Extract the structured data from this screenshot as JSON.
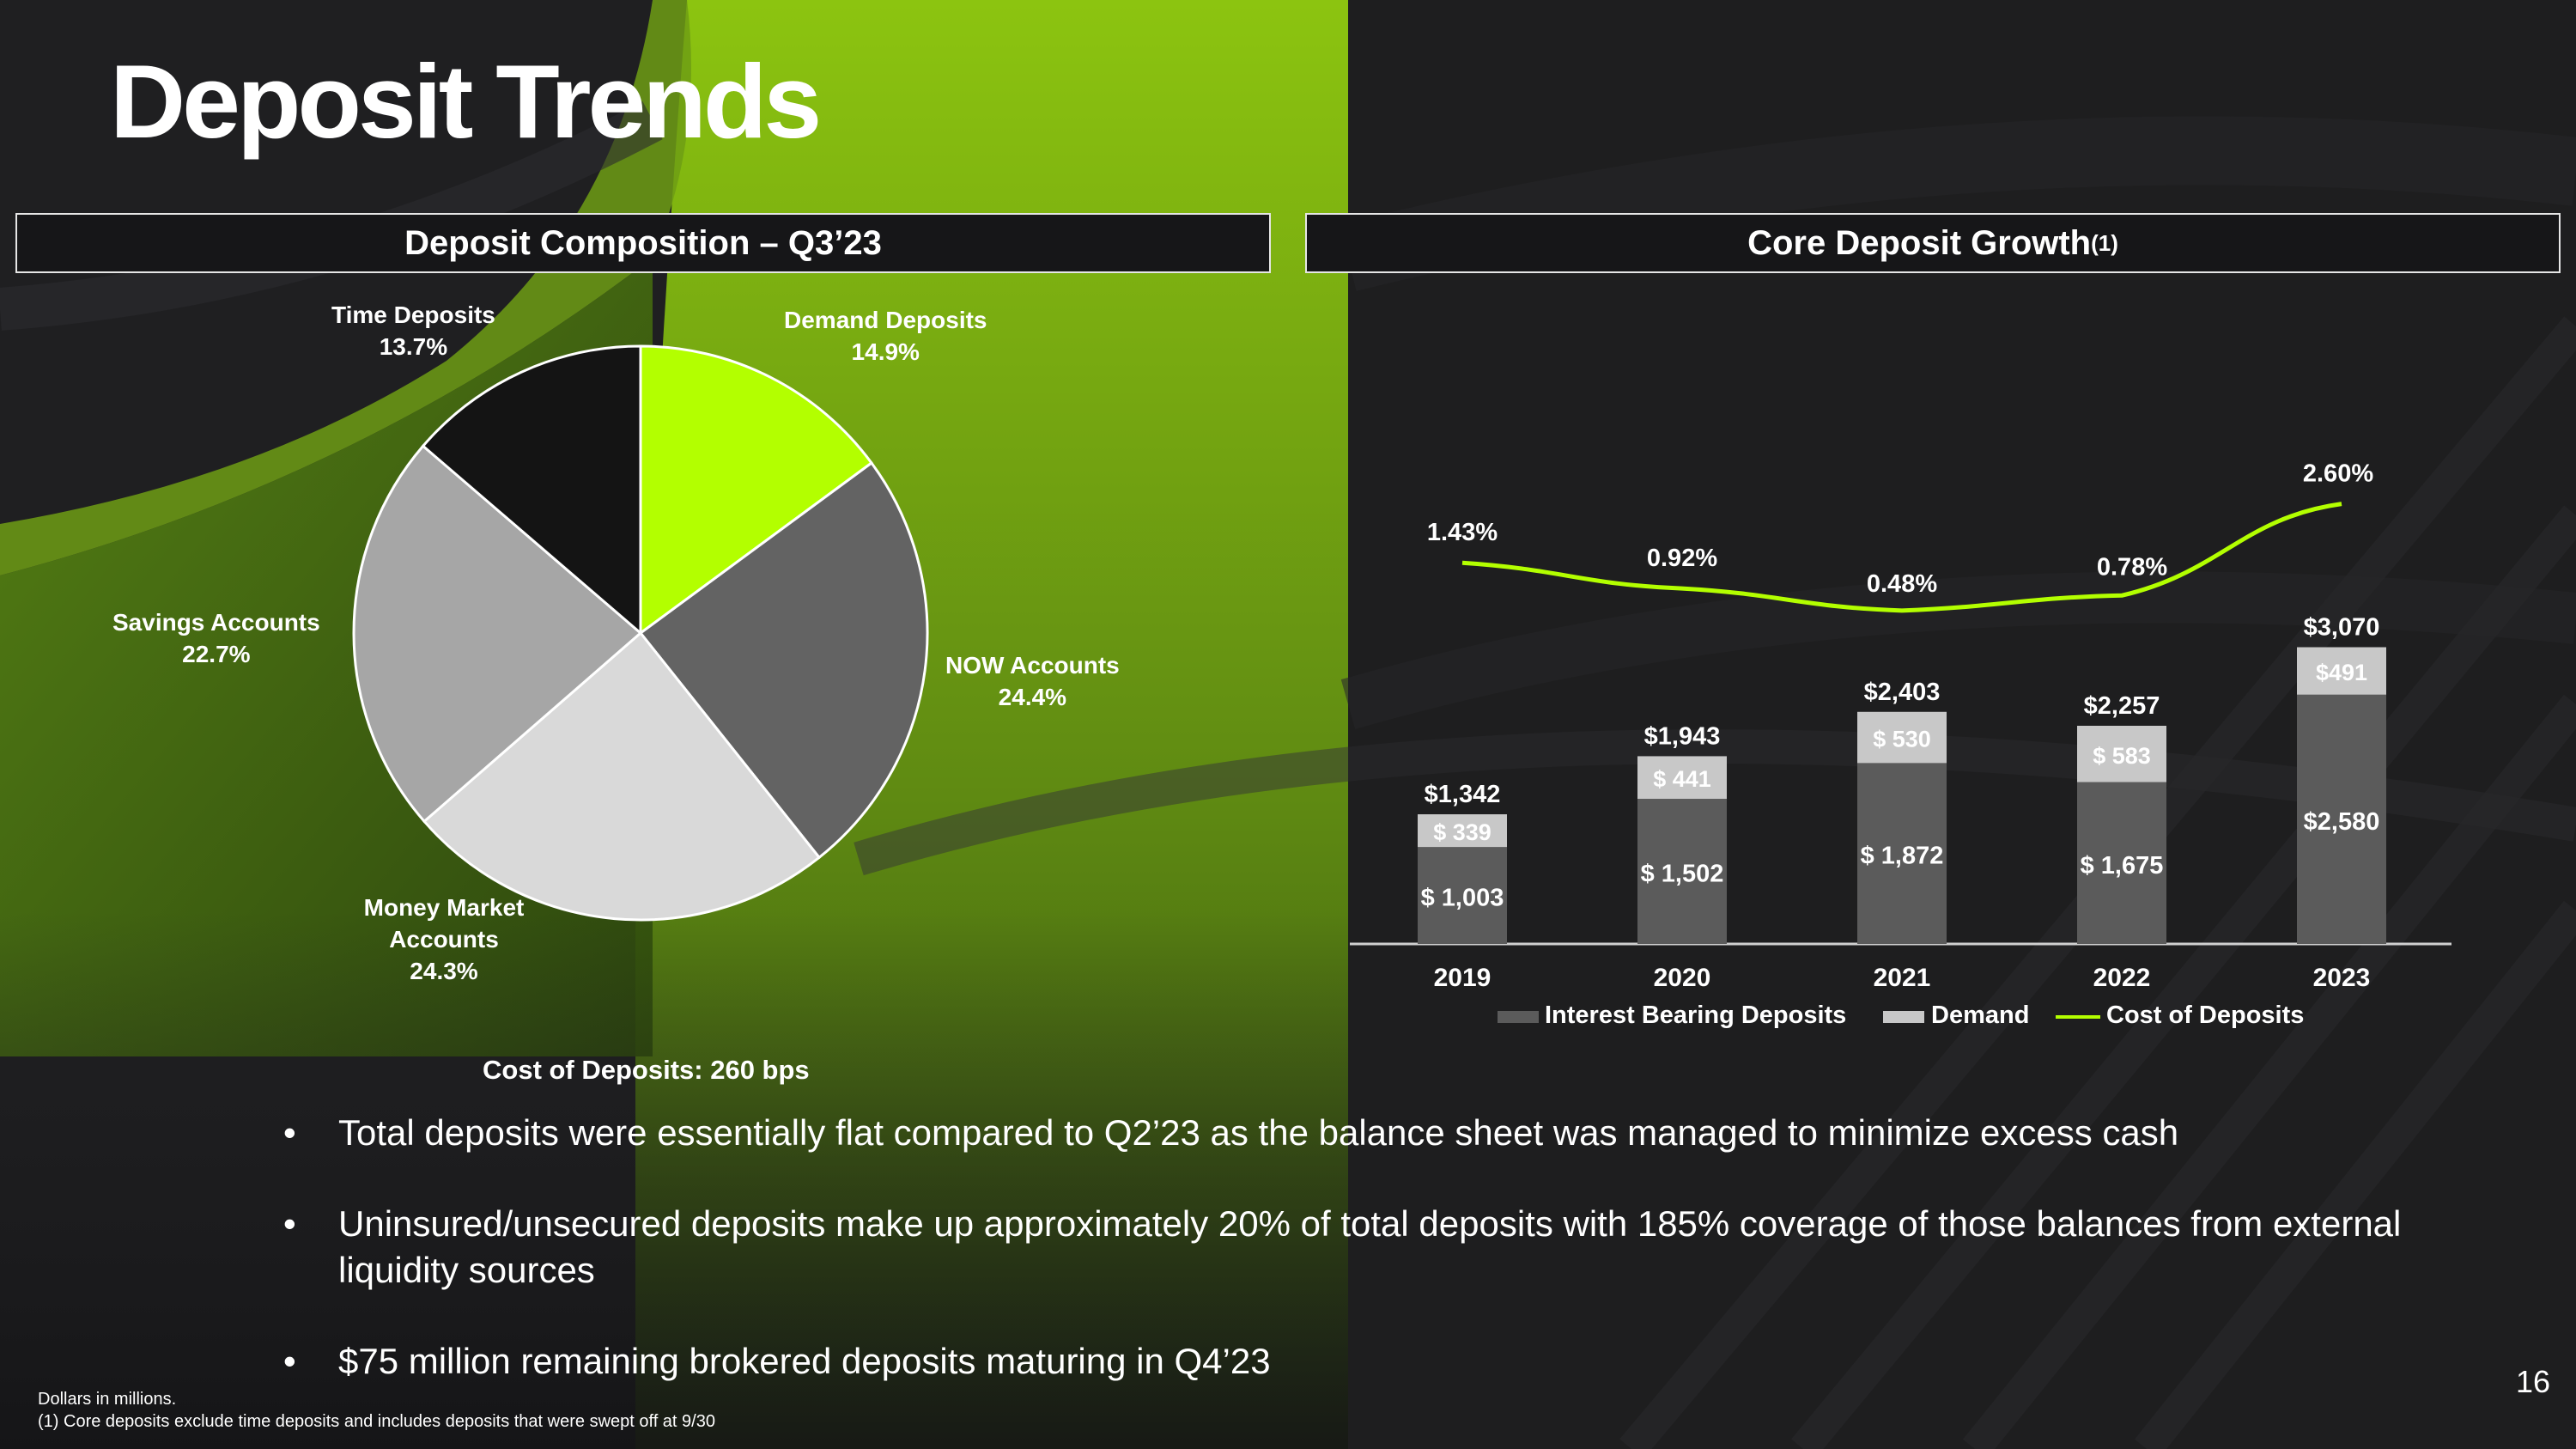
{
  "title": "Deposit Trends",
  "colors": {
    "accent": "#b3ff00",
    "background": "#1e1e20",
    "interest_bearing": "#5b5b5b",
    "demand": "#c8c8c8",
    "cost_line": "#b3ff00"
  },
  "left_panel": {
    "header": "Deposit Composition – Q3’23",
    "cost_note": "Cost of Deposits: 260 bps"
  },
  "right_panel": {
    "header": "Core Deposit Growth",
    "header_sup": "(1)"
  },
  "chart_data": [
    {
      "type": "pie",
      "title": "Deposit Composition – Q3’23",
      "slices": [
        {
          "label": "Demand Deposits",
          "value": 14.9,
          "display": "14.9%",
          "color": "#b3ff00"
        },
        {
          "label": "NOW Accounts",
          "value": 24.4,
          "display": "24.4%",
          "color": "#636363"
        },
        {
          "label": "Money Market Accounts",
          "value": 24.3,
          "display": "24.3%",
          "color": "#d9d9d9"
        },
        {
          "label": "Savings Accounts",
          "value": 22.7,
          "display": "22.7%",
          "color": "#a6a6a6"
        },
        {
          "label": "Time Deposits",
          "value": 13.7,
          "display": "13.7%",
          "color": "#141414"
        }
      ]
    },
    {
      "type": "bar",
      "stacked": true,
      "title": "Core Deposit Growth(1)",
      "categories": [
        "2019",
        "2020",
        "2021",
        "2022",
        "2023"
      ],
      "series": [
        {
          "name": "Interest Bearing Deposits",
          "values": [
            1003,
            1502,
            1872,
            1675,
            2580
          ],
          "labels": [
            "$ 1,003",
            "$ 1,502",
            "$ 1,872",
            "$ 1,675",
            "$2,580"
          ],
          "color": "#5b5b5b"
        },
        {
          "name": "Demand",
          "values": [
            339,
            441,
            530,
            583,
            491
          ],
          "labels": [
            "$ 339",
            "$ 441",
            "$ 530",
            "$ 583",
            "$491"
          ],
          "color": "#c8c8c8"
        }
      ],
      "totals": [
        "$1,342",
        "$1,943",
        "$2,403",
        "$2,257",
        "$3,070"
      ],
      "line_series": {
        "name": "Cost of Deposits",
        "values": [
          1.43,
          0.92,
          0.48,
          0.78,
          2.6
        ],
        "labels": [
          "1.43%",
          "0.92%",
          "0.48%",
          "0.78%",
          "2.60%"
        ],
        "color": "#b3ff00"
      },
      "legend": "bottom",
      "grid": false
    }
  ],
  "bullets": [
    "Total deposits were essentially flat compared to Q2’23 as the balance sheet was managed to minimize excess cash",
    "Uninsured/unsecured deposits make up approximately 20% of total deposits with 185% coverage of those balances from external liquidity sources",
    "$75 million remaining brokered deposits maturing in Q4’23"
  ],
  "bullet_glyph": "•",
  "footnotes": [
    "Dollars in millions.",
    "(1) Core deposits exclude time deposits and includes deposits that were swept off at 9/30"
  ],
  "page_number": "16"
}
